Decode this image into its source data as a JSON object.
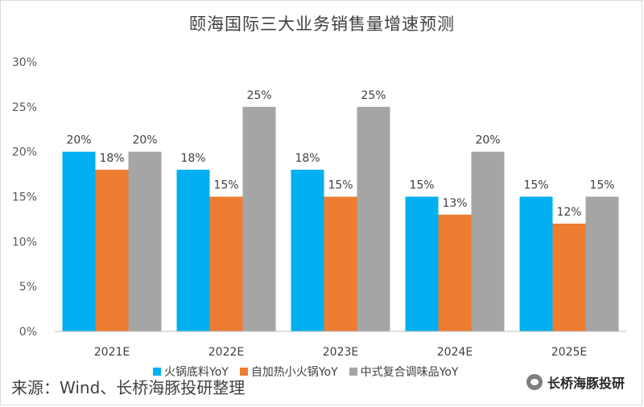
{
  "chart_data": {
    "type": "bar",
    "title": "颐海国际三大业务销售量增速预测",
    "categories": [
      "2021E",
      "2022E",
      "2023E",
      "2024E",
      "2025E"
    ],
    "series": [
      {
        "name": "火锅底料YoY",
        "color": "#00b0f0",
        "values": [
          20,
          18,
          18,
          15,
          15
        ],
        "labels": [
          "20%",
          "18%",
          "18%",
          "15%",
          "15%"
        ]
      },
      {
        "name": "自加热小火锅YoY",
        "color": "#ed7d31",
        "values": [
          18,
          15,
          15,
          13,
          12
        ],
        "labels": [
          "18%",
          "15%",
          "15%",
          "13%",
          "12%"
        ]
      },
      {
        "name": "中式复合调味品YoY",
        "color": "#a5a5a5",
        "values": [
          20,
          25,
          25,
          20,
          15
        ],
        "labels": [
          "20%",
          "25%",
          "25%",
          "20%",
          "15%"
        ]
      }
    ],
    "ylim": [
      0,
      30
    ],
    "yticks": [
      "0%",
      "5%",
      "10%",
      "15%",
      "20%",
      "25%",
      "30%"
    ],
    "grid": false,
    "legend_position": "bottom"
  },
  "footer": {
    "source": "来源：Wind、长桥海豚投研整理",
    "brand": "长桥海豚投研"
  }
}
